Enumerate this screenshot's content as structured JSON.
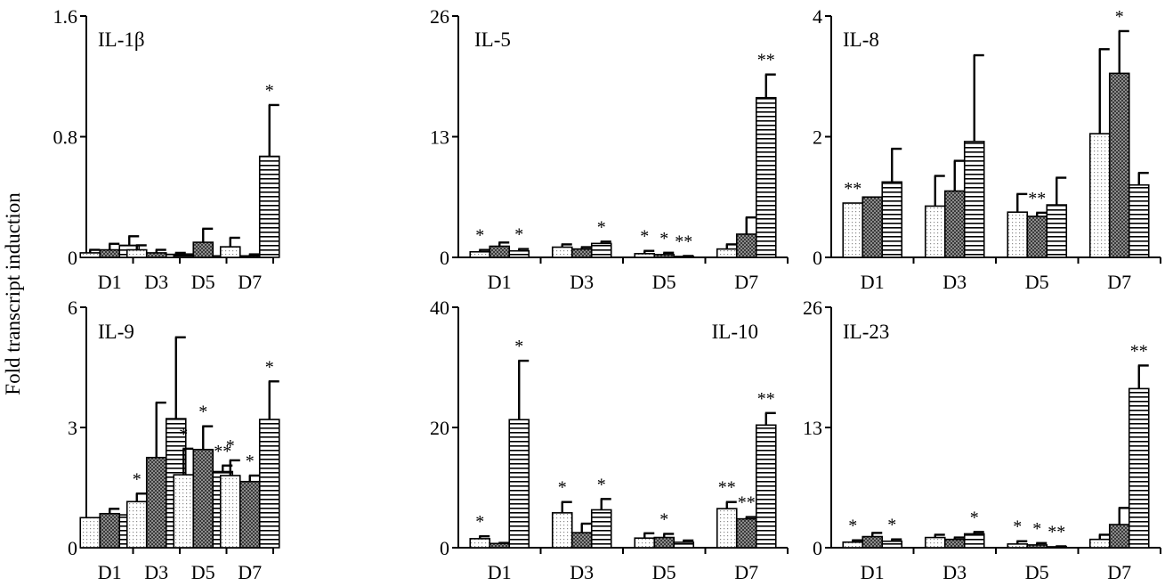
{
  "ylabel": "Fold transcript induction",
  "chart_data": [
    {
      "type": "bar",
      "title": "IL-1β",
      "categories": [
        "D1",
        "D3",
        "D5",
        "D7"
      ],
      "ylim": [
        0,
        1.6
      ],
      "yticks": [
        "0",
        "0.8",
        "1.6"
      ],
      "series": [
        {
          "values": [
            0.03,
            0.05,
            0.01,
            0.07
          ],
          "errors": [
            0.02,
            0.03,
            0.01,
            0.06
          ],
          "stars": [
            "",
            "",
            "",
            ""
          ]
        },
        {
          "values": [
            0.05,
            0.03,
            0.1,
            0.01
          ],
          "errors": [
            0.04,
            0.02,
            0.09,
            0.01
          ],
          "stars": [
            "",
            "",
            "",
            ""
          ]
        },
        {
          "values": [
            0.08,
            0.02,
            0.01,
            0.67
          ],
          "errors": [
            0.06,
            0.01,
            0.01,
            0.34
          ],
          "stars": [
            "",
            "",
            "",
            "*"
          ]
        }
      ]
    },
    {
      "type": "bar",
      "title": "IL-5",
      "categories": [
        "D1",
        "D3",
        "D5",
        "D7"
      ],
      "ylim": [
        0,
        26
      ],
      "yticks": [
        "0",
        "13",
        "26"
      ],
      "series": [
        {
          "values": [
            0.6,
            1.1,
            0.4,
            0.9
          ],
          "errors": [
            0.2,
            0.3,
            0.3,
            0.5
          ],
          "stars": [
            "*",
            "",
            "*",
            ""
          ]
        },
        {
          "values": [
            1.2,
            0.9,
            0.3,
            2.5
          ],
          "errors": [
            0.4,
            0.2,
            0.2,
            1.8
          ],
          "stars": [
            "",
            "",
            "*",
            ""
          ]
        },
        {
          "values": [
            0.7,
            1.5,
            0.1,
            17.2
          ],
          "errors": [
            0.2,
            0.2,
            0.05,
            2.5
          ],
          "stars": [
            "*",
            "*",
            "**",
            "**"
          ]
        }
      ]
    },
    {
      "type": "bar",
      "title": "IL-8",
      "categories": [
        "D1",
        "D3",
        "D5",
        "D7"
      ],
      "ylim": [
        0,
        4
      ],
      "yticks": [
        "0",
        "2",
        "4"
      ],
      "series": [
        {
          "values": [
            0.9,
            0.85,
            0.75,
            2.05
          ],
          "errors": [
            0.0,
            0.5,
            0.3,
            1.4
          ],
          "stars": [
            "**",
            "",
            "",
            ""
          ]
        },
        {
          "values": [
            1.0,
            1.1,
            0.68,
            3.05
          ],
          "errors": [
            0.0,
            0.5,
            0.06,
            0.7
          ],
          "stars": [
            "",
            "",
            "**",
            "*"
          ]
        },
        {
          "values": [
            1.25,
            1.92,
            0.87,
            1.2
          ],
          "errors": [
            0.55,
            1.43,
            0.45,
            0.2
          ],
          "stars": [
            "",
            "",
            "",
            ""
          ]
        }
      ]
    },
    {
      "type": "bar",
      "title": "IL-9",
      "categories": [
        "D1",
        "D3",
        "D5",
        "D7"
      ],
      "ylim": [
        0,
        6
      ],
      "yticks": [
        "0",
        "3",
        "6"
      ],
      "series": [
        {
          "values": [
            0.75,
            1.15,
            1.82,
            1.8
          ],
          "errors": [
            0.0,
            0.2,
            0.65,
            0.38
          ],
          "stars": [
            "",
            "*",
            "*",
            "*"
          ]
        },
        {
          "values": [
            0.85,
            2.25,
            2.45,
            1.65
          ],
          "errors": [
            0.12,
            1.37,
            0.58,
            0.15
          ],
          "stars": [
            "",
            "",
            "*",
            "*"
          ]
        },
        {
          "values": [
            0.82,
            3.22,
            1.9,
            3.2
          ],
          "errors": [
            0.05,
            2.03,
            0.15,
            0.95
          ],
          "stars": [
            "",
            "",
            "**",
            "*"
          ]
        }
      ]
    },
    {
      "type": "bar",
      "title": "IL-10",
      "categories": [
        "D1",
        "D3",
        "D5",
        "D7"
      ],
      "ylim": [
        0,
        40
      ],
      "yticks": [
        "0",
        "20",
        "40"
      ],
      "series": [
        {
          "values": [
            1.5,
            5.8,
            1.6,
            6.5
          ],
          "errors": [
            0.4,
            1.8,
            0.8,
            1.1
          ],
          "stars": [
            "*",
            "*",
            "",
            "**"
          ]
        },
        {
          "values": [
            0.7,
            2.5,
            1.7,
            4.8
          ],
          "errors": [
            0.1,
            1.5,
            0.6,
            0.3
          ],
          "stars": [
            "",
            "",
            "*",
            "**"
          ]
        },
        {
          "values": [
            21.3,
            6.3,
            0.9,
            20.4
          ],
          "errors": [
            9.8,
            1.8,
            0.3,
            2.0
          ],
          "stars": [
            "*",
            "*",
            "",
            "**"
          ]
        }
      ]
    },
    {
      "type": "bar",
      "title": "IL-23",
      "categories": [
        "D1",
        "D3",
        "D5",
        "D7"
      ],
      "ylim": [
        0,
        26
      ],
      "yticks": [
        "0",
        "13",
        "26"
      ],
      "series": [
        {
          "values": [
            0.6,
            1.1,
            0.4,
            0.9
          ],
          "errors": [
            0.2,
            0.3,
            0.3,
            0.5
          ],
          "stars": [
            "*",
            "",
            "*",
            ""
          ]
        },
        {
          "values": [
            1.2,
            0.9,
            0.3,
            2.5
          ],
          "errors": [
            0.4,
            0.2,
            0.2,
            1.8
          ],
          "stars": [
            "",
            "",
            "*",
            ""
          ]
        },
        {
          "values": [
            0.7,
            1.5,
            0.1,
            17.2
          ],
          "errors": [
            0.2,
            0.2,
            0.05,
            2.5
          ],
          "stars": [
            "*",
            "*",
            "**",
            "**"
          ]
        }
      ]
    }
  ]
}
